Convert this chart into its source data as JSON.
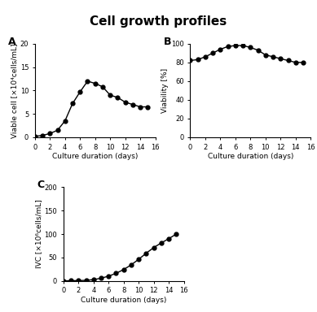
{
  "title": "Cell growth profiles",
  "panel_A": {
    "label": "A",
    "x": [
      0,
      1,
      2,
      3,
      4,
      5,
      6,
      7,
      8,
      9,
      10,
      11,
      12,
      13,
      14,
      15
    ],
    "y": [
      0.2,
      0.4,
      0.8,
      1.5,
      3.5,
      7.2,
      9.7,
      12.0,
      11.5,
      10.8,
      9.0,
      8.5,
      7.5,
      7.0,
      6.5,
      6.5
    ],
    "xlabel": "Culture duration (days)",
    "ylabel": "Viable cell [×10⁴cells/mL]",
    "xlim": [
      0,
      16
    ],
    "ylim": [
      0,
      20
    ],
    "xticks": [
      0,
      2,
      4,
      6,
      8,
      10,
      12,
      14,
      16
    ],
    "yticks": [
      0,
      5,
      10,
      15,
      20
    ]
  },
  "panel_B": {
    "label": "B",
    "x": [
      0,
      1,
      2,
      3,
      4,
      5,
      6,
      7,
      8,
      9,
      10,
      11,
      12,
      13,
      14,
      15
    ],
    "y": [
      82,
      83,
      86,
      90,
      94,
      97,
      98,
      98,
      96,
      93,
      88,
      86,
      84,
      82,
      80,
      80
    ],
    "xlabel": "Culture duration (days)",
    "ylabel": "Viability [%]",
    "xlim": [
      0,
      16
    ],
    "ylim": [
      0,
      100
    ],
    "xticks": [
      0,
      2,
      4,
      6,
      8,
      10,
      12,
      14,
      16
    ],
    "yticks": [
      0,
      20,
      40,
      60,
      80,
      100
    ]
  },
  "panel_C": {
    "label": "C",
    "x": [
      0,
      1,
      2,
      3,
      4,
      5,
      6,
      7,
      8,
      9,
      10,
      11,
      12,
      13,
      14,
      15
    ],
    "y": [
      0,
      0.2,
      0.5,
      1.0,
      2.5,
      5.5,
      10.0,
      16.0,
      24.0,
      34.0,
      46.0,
      59.0,
      71.0,
      81.0,
      90.0,
      100.0
    ],
    "xlabel": "Culture duration (days)",
    "ylabel": "IVC [×10⁶cells/mL]",
    "xlim": [
      0,
      16
    ],
    "ylim": [
      0,
      200
    ],
    "xticks": [
      0,
      2,
      4,
      6,
      8,
      10,
      12,
      14,
      16
    ],
    "yticks": [
      0,
      50,
      100,
      150,
      200
    ]
  },
  "marker": "o",
  "markersize": 3.5,
  "linewidth": 1.0,
  "color": "black",
  "background_color": "#ffffff",
  "title_fontsize": 11,
  "label_fontsize": 6.5,
  "tick_fontsize": 6,
  "panel_label_fontsize": 9
}
